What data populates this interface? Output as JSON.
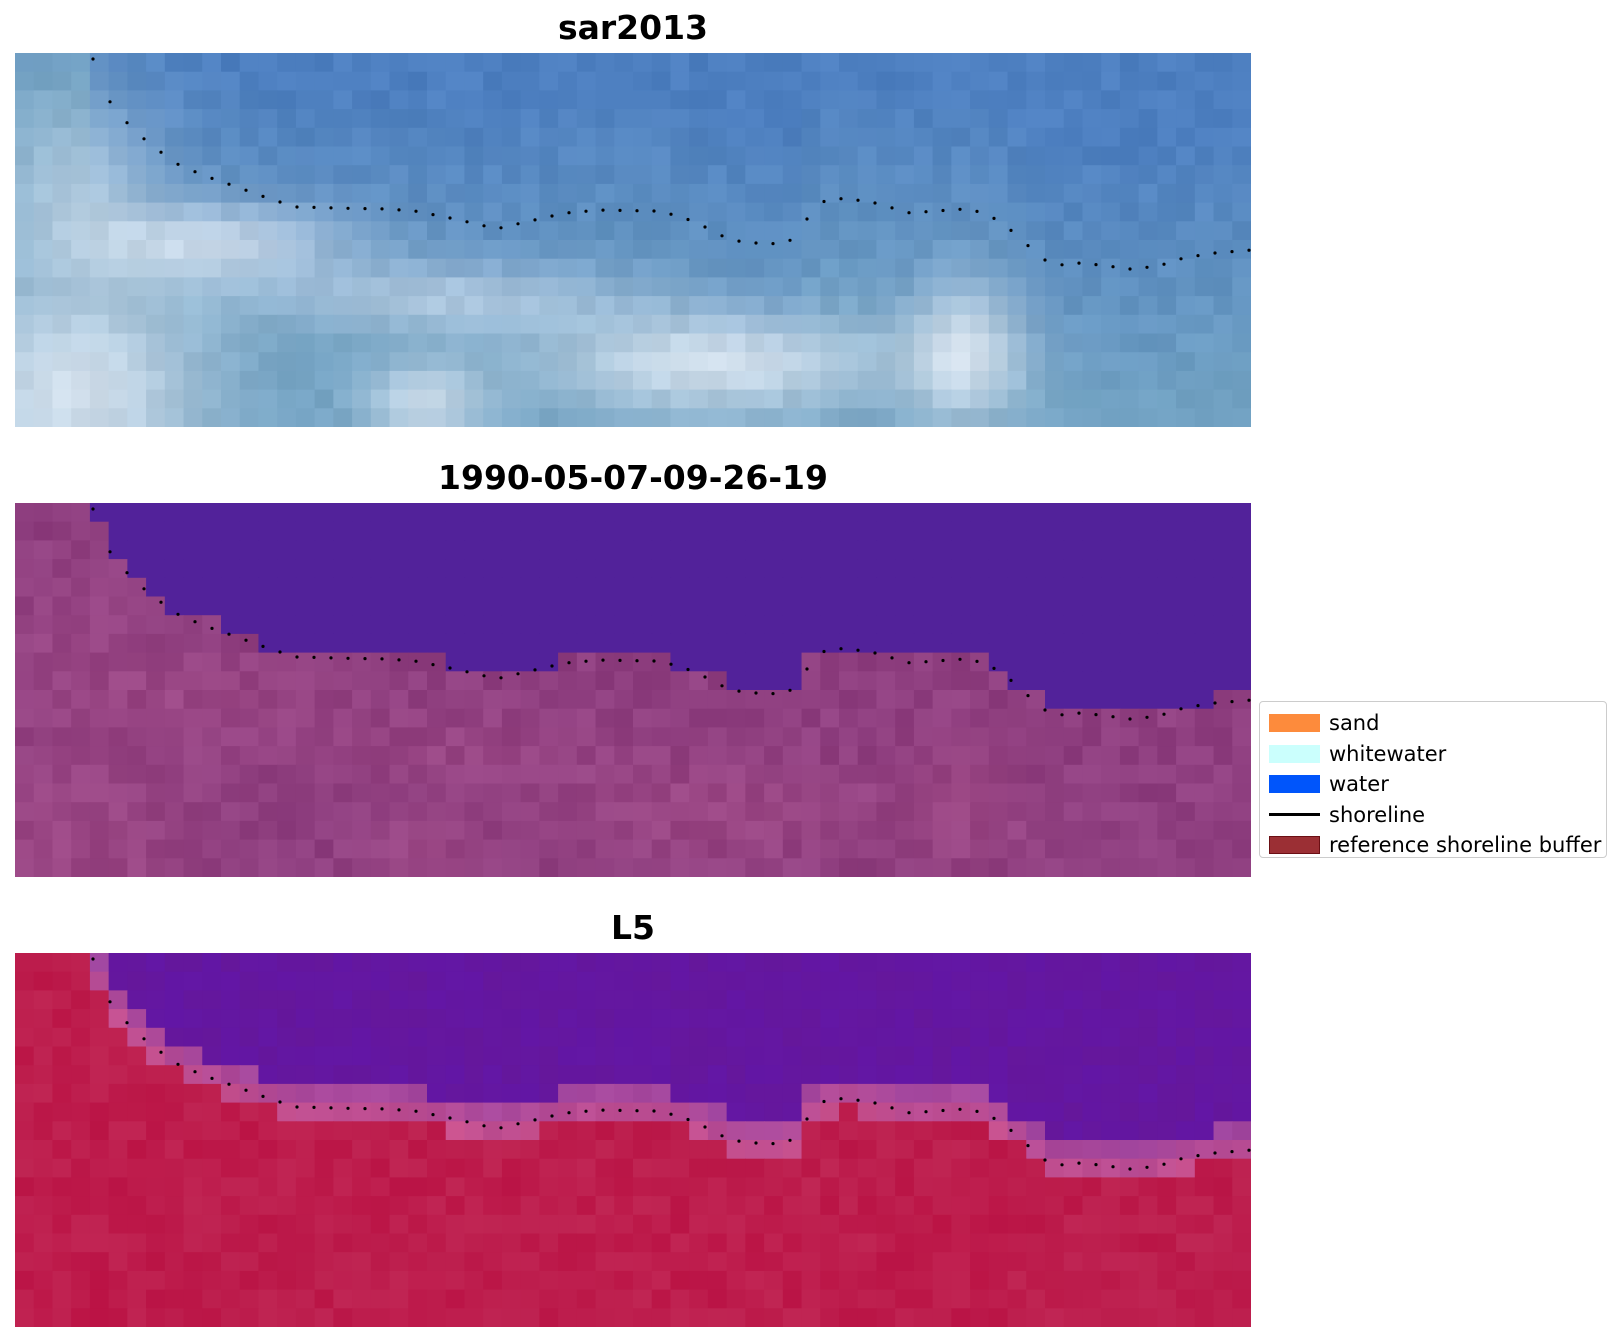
{
  "panels": [
    {
      "title": "sar2013",
      "style": "rgb"
    },
    {
      "title": "1990-05-07-09-26-19",
      "style": "classified"
    },
    {
      "title": "L5",
      "style": "index"
    }
  ],
  "legend": {
    "items": [
      {
        "label": "sand",
        "kind": "patch",
        "color": "#fd8b3c",
        "edge": "#fd8b3c"
      },
      {
        "label": "whitewater",
        "kind": "patch",
        "color": "#cbfffd",
        "edge": "#cbfffd"
      },
      {
        "label": "water",
        "kind": "patch",
        "color": "#0055fb",
        "edge": "#0055fb"
      },
      {
        "label": "shoreline",
        "kind": "line",
        "color": "#000000"
      },
      {
        "label": "reference shoreline buffer",
        "kind": "patch",
        "color": "#9b2f34",
        "edge": "#6b0f14"
      }
    ]
  },
  "colors": {
    "rgb_sea": "#4d7fc0",
    "rgb_surf": "#e8eef6",
    "classified_water": "#52229a",
    "classified_land": "#a04a86",
    "index_water": "#6a1ca0",
    "index_land": "#c0184a"
  }
}
